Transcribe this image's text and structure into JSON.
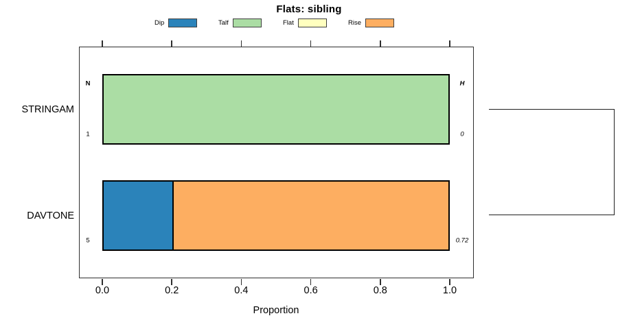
{
  "title": "Flats: sibling",
  "xlabel": "Proportion",
  "legend": [
    {
      "label": "Dip",
      "color": "#2B83BA"
    },
    {
      "label": "Talf",
      "color": "#ABDDA4"
    },
    {
      "label": "Flat",
      "color": "#FFFFBF"
    },
    {
      "label": "Rise",
      "color": "#FDAE61"
    }
  ],
  "columns": {
    "n_header": "N",
    "h_header": "H"
  },
  "chart_data": {
    "type": "bar",
    "orientation": "horizontal",
    "stacked": true,
    "title": "Flats: sibling",
    "xlabel": "Proportion",
    "xlim": [
      0,
      1
    ],
    "x_ticks": [
      "0.0",
      "0.2",
      "0.4",
      "0.6",
      "0.8",
      "1.0"
    ],
    "grid": false,
    "legend_position": "top",
    "categories": [
      "STRINGAM",
      "DAVTONE"
    ],
    "series": [
      {
        "name": "Dip",
        "color": "#2B83BA",
        "values": [
          0,
          0.2
        ]
      },
      {
        "name": "Talf",
        "color": "#ABDDA4",
        "values": [
          1,
          0
        ]
      },
      {
        "name": "Flat",
        "color": "#FFFFBF",
        "values": [
          0,
          0
        ]
      },
      {
        "name": "Rise",
        "color": "#FDAE61",
        "values": [
          0,
          0.8
        ]
      }
    ],
    "row_annotations": [
      {
        "category": "STRINGAM",
        "n": "1",
        "h": "0"
      },
      {
        "category": "DAVTONE",
        "n": "5",
        "h": "0.72"
      }
    ],
    "right_tree": "bracket joining STRINGAM and DAVTONE"
  }
}
